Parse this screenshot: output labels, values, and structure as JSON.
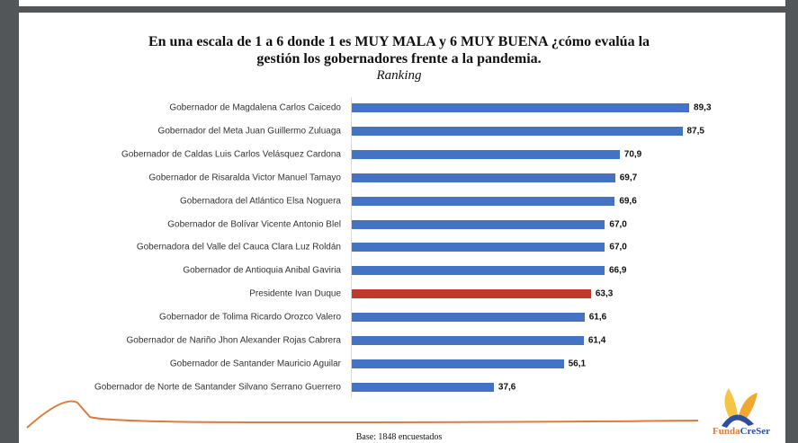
{
  "chart_data": {
    "type": "bar",
    "orientation": "horizontal",
    "title_line1": "En una escala de 1 a 6 donde 1 es MUY MALA y 6 MUY BUENA ¿cómo evalúa la",
    "title_line2": "gestión los gobernadores frente a la pandemia.",
    "subtitle": "Ranking",
    "categories": [
      "Gobernador de Magdalena Carlos Caicedo",
      "Gobernador del Meta Juan Guillermo Zuluaga",
      "Gobernador de Caldas Luis Carlos Velásquez Cardona",
      "Gobernador de Risaralda Victor Manuel Tamayo",
      "Gobernadora del Atlántico Elsa Noguera",
      "Gobernador de Bolívar Vicente Antonio Blel",
      "Gobernadora del Valle del Cauca Clara Luz Roldán",
      "Gobernador de Antioquia Anibal Gaviria",
      "Presidente Ivan Duque",
      "Gobernador de Tolima Ricardo Orozco Valero",
      "Gobernador de Nariño Jhon Alexander Rojas Cabrera",
      "Gobernador de Santander Mauricio Aguilar",
      "Gobernador de Norte de Santander Silvano Serrano Guerrero"
    ],
    "values": [
      89.3,
      87.5,
      70.9,
      69.7,
      69.6,
      67.0,
      67.0,
      66.9,
      63.3,
      61.6,
      61.4,
      56.1,
      37.6
    ],
    "value_labels": [
      "89,3",
      "87,5",
      "70,9",
      "69,7",
      "69,6",
      "67,0",
      "67,0",
      "66,9",
      "63,3",
      "61,6",
      "61,4",
      "56,1",
      "37,6"
    ],
    "highlight_index": 8,
    "colors": {
      "default": "#4472c4",
      "highlight": "#c0392b"
    },
    "xlim": [
      0,
      100
    ],
    "footnote": "Base: 1848 encuestados"
  },
  "logo": {
    "text_a": "Funda",
    "text_b": "CreSer"
  }
}
